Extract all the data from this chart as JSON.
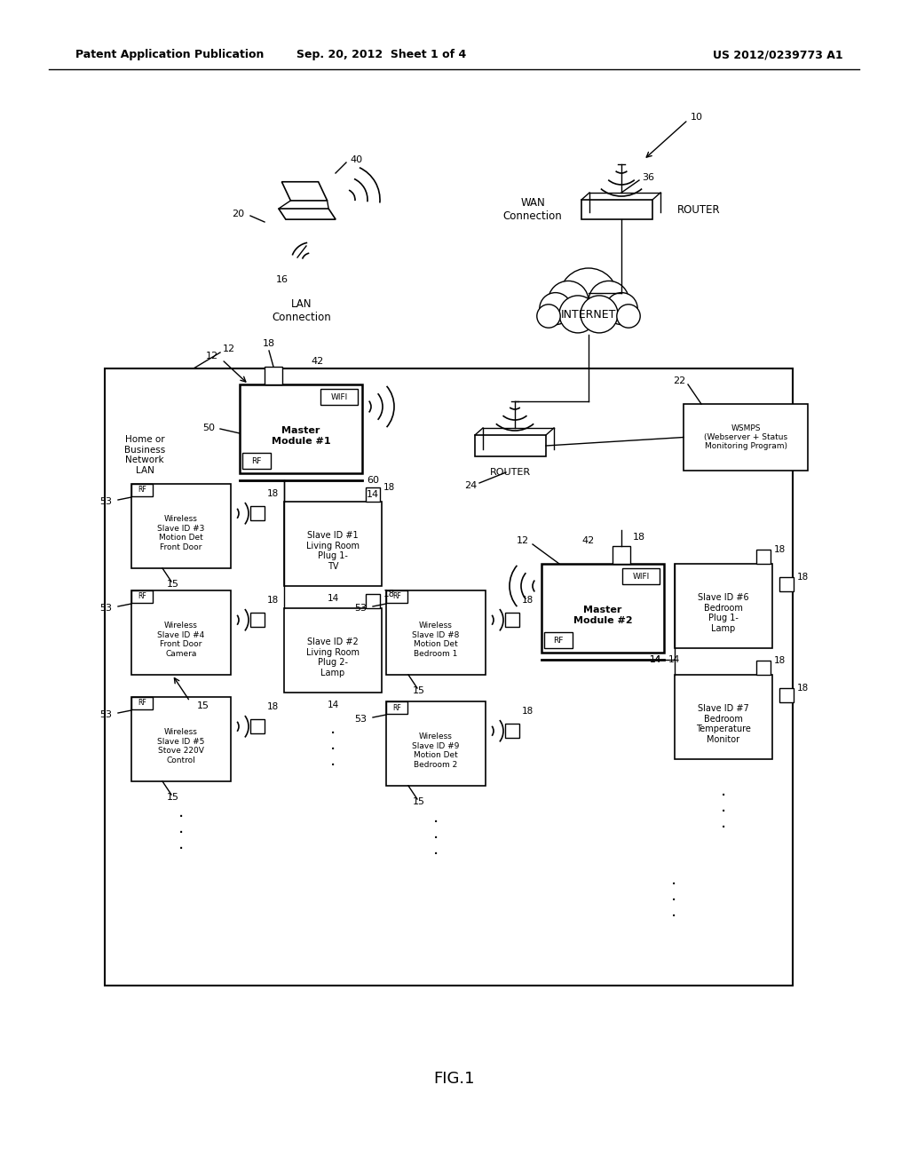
{
  "header_left": "Patent Application Publication",
  "header_center": "Sep. 20, 2012  Sheet 1 of 4",
  "header_right": "US 2012/0239773 A1",
  "fig_label": "FIG.1",
  "bg_color": "#ffffff"
}
